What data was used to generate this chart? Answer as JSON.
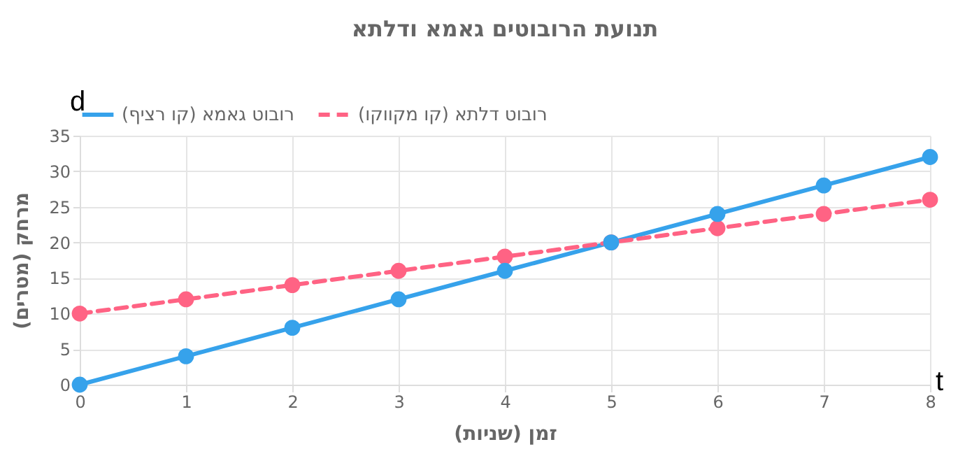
{
  "chart_data": {
    "type": "line",
    "title": "תנועת הרובוטים גאמא ודלתא",
    "xlabel": "זמן (שניות)",
    "ylabel": "מרחק (מטרים)",
    "annotations": [
      "d",
      "t"
    ],
    "x": [
      0,
      1,
      2,
      3,
      4,
      5,
      6,
      7,
      8
    ],
    "series": [
      {
        "name": "רובוט גאמא (קו רציף)",
        "color": "#36a2eb",
        "line_style": "solid",
        "values": [
          0,
          4,
          8,
          12,
          16,
          20,
          24,
          28,
          32
        ]
      },
      {
        "name": "רובוט דלתא (קו מקווקו)",
        "color": "#ff6384",
        "line_style": "dashed",
        "values": [
          10,
          12,
          14,
          16,
          18,
          20,
          22,
          24,
          26
        ]
      }
    ],
    "xlim": [
      0,
      8
    ],
    "xticks": [
      {
        "value": 0,
        "label": "0"
      },
      {
        "value": 1,
        "label": "1"
      },
      {
        "value": 2,
        "label": "2"
      },
      {
        "value": 3,
        "label": "3"
      },
      {
        "value": 4,
        "label": "4"
      },
      {
        "value": 5,
        "label": "5"
      },
      {
        "value": 6,
        "label": "6"
      },
      {
        "value": 7,
        "label": "7"
      },
      {
        "value": 8,
        "label": "8"
      }
    ],
    "ylim": [
      0,
      35
    ],
    "yticks": [
      0,
      5,
      10,
      15,
      20,
      25,
      30,
      35
    ],
    "grid": true,
    "legend": "top",
    "marker": "circle"
  }
}
